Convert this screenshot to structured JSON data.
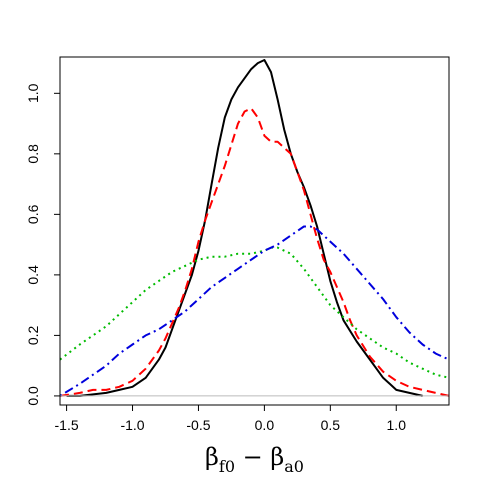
{
  "chart_data": {
    "type": "line",
    "title": "",
    "xlabel": {
      "beta": "β",
      "sub1": "f0",
      "minus": " − ",
      "sub2": "a0"
    },
    "ylabel": "",
    "xlim": [
      -1.55,
      1.4
    ],
    "ylim": [
      -0.03,
      1.12
    ],
    "xticks": [
      -1.5,
      -1.0,
      -0.5,
      0.0,
      0.5,
      1.0
    ],
    "xtick_labels": [
      "-1.5",
      "-1.0",
      "-0.5",
      "0.0",
      "0.5",
      "1.0"
    ],
    "yticks": [
      0.0,
      0.2,
      0.4,
      0.6,
      0.8,
      1.0
    ],
    "ytick_labels": [
      "0.0",
      "0.2",
      "0.4",
      "0.6",
      "0.8",
      "1.0"
    ],
    "zero_line": true,
    "grid": false,
    "series": [
      {
        "color": "#000000",
        "dash": "solid",
        "x": [
          -1.5,
          -1.4,
          -1.3,
          -1.2,
          -1.1,
          -1.0,
          -0.9,
          -0.8,
          -0.75,
          -0.7,
          -0.65,
          -0.6,
          -0.55,
          -0.5,
          -0.45,
          -0.4,
          -0.35,
          -0.3,
          -0.25,
          -0.2,
          -0.15,
          -0.1,
          -0.05,
          0.0,
          0.05,
          0.1,
          0.15,
          0.2,
          0.25,
          0.3,
          0.35,
          0.4,
          0.45,
          0.5,
          0.55,
          0.6,
          0.7,
          0.8,
          0.85,
          0.9,
          0.95,
          1.0,
          1.1,
          1.2
        ],
        "y": [
          0.0,
          0.0,
          0.005,
          0.01,
          0.02,
          0.03,
          0.06,
          0.12,
          0.16,
          0.22,
          0.28,
          0.34,
          0.4,
          0.48,
          0.58,
          0.7,
          0.82,
          0.92,
          0.98,
          1.02,
          1.05,
          1.08,
          1.1,
          1.11,
          1.07,
          0.98,
          0.88,
          0.8,
          0.74,
          0.69,
          0.63,
          0.56,
          0.47,
          0.38,
          0.31,
          0.25,
          0.18,
          0.12,
          0.09,
          0.06,
          0.04,
          0.02,
          0.01,
          0.0
        ]
      },
      {
        "color": "#ff0000",
        "dash": "dashed",
        "x": [
          -1.55,
          -1.4,
          -1.3,
          -1.2,
          -1.1,
          -1.0,
          -0.9,
          -0.8,
          -0.75,
          -0.7,
          -0.65,
          -0.6,
          -0.55,
          -0.5,
          -0.45,
          -0.4,
          -0.35,
          -0.3,
          -0.25,
          -0.2,
          -0.15,
          -0.1,
          -0.05,
          0.0,
          0.05,
          0.1,
          0.15,
          0.2,
          0.25,
          0.3,
          0.35,
          0.4,
          0.45,
          0.5,
          0.55,
          0.6,
          0.65,
          0.7,
          0.8,
          0.9,
          1.0,
          1.1,
          1.2,
          1.3,
          1.4
        ],
        "y": [
          0.0,
          0.01,
          0.02,
          0.02,
          0.03,
          0.05,
          0.09,
          0.15,
          0.19,
          0.24,
          0.29,
          0.35,
          0.42,
          0.51,
          0.58,
          0.64,
          0.7,
          0.76,
          0.83,
          0.9,
          0.94,
          0.95,
          0.92,
          0.86,
          0.84,
          0.84,
          0.82,
          0.8,
          0.74,
          0.68,
          0.6,
          0.52,
          0.45,
          0.41,
          0.36,
          0.31,
          0.25,
          0.2,
          0.13,
          0.08,
          0.05,
          0.03,
          0.02,
          0.01,
          0.0
        ]
      },
      {
        "color": "#00bb00",
        "dash": "dotted",
        "x": [
          -1.55,
          -1.4,
          -1.3,
          -1.2,
          -1.1,
          -1.0,
          -0.9,
          -0.8,
          -0.7,
          -0.6,
          -0.5,
          -0.4,
          -0.3,
          -0.2,
          -0.1,
          0.0,
          0.05,
          0.1,
          0.15,
          0.2,
          0.3,
          0.4,
          0.5,
          0.6,
          0.7,
          0.8,
          0.9,
          1.0,
          1.1,
          1.2,
          1.3,
          1.4
        ],
        "y": [
          0.12,
          0.17,
          0.2,
          0.23,
          0.27,
          0.31,
          0.35,
          0.38,
          0.41,
          0.43,
          0.45,
          0.46,
          0.46,
          0.47,
          0.47,
          0.48,
          0.49,
          0.49,
          0.48,
          0.47,
          0.42,
          0.36,
          0.3,
          0.26,
          0.22,
          0.19,
          0.16,
          0.14,
          0.11,
          0.09,
          0.07,
          0.06
        ]
      },
      {
        "color": "#0000dd",
        "dash": "dashdot",
        "x": [
          -1.55,
          -1.4,
          -1.3,
          -1.2,
          -1.1,
          -1.0,
          -0.9,
          -0.8,
          -0.7,
          -0.6,
          -0.5,
          -0.4,
          -0.3,
          -0.2,
          -0.1,
          0.0,
          0.1,
          0.2,
          0.3,
          0.35,
          0.4,
          0.5,
          0.6,
          0.7,
          0.8,
          0.9,
          1.0,
          1.1,
          1.2,
          1.3,
          1.4
        ],
        "y": [
          0.0,
          0.04,
          0.07,
          0.1,
          0.14,
          0.17,
          0.2,
          0.22,
          0.25,
          0.28,
          0.32,
          0.36,
          0.39,
          0.42,
          0.45,
          0.48,
          0.5,
          0.53,
          0.56,
          0.56,
          0.55,
          0.51,
          0.47,
          0.42,
          0.37,
          0.32,
          0.26,
          0.21,
          0.17,
          0.14,
          0.12
        ]
      }
    ]
  }
}
